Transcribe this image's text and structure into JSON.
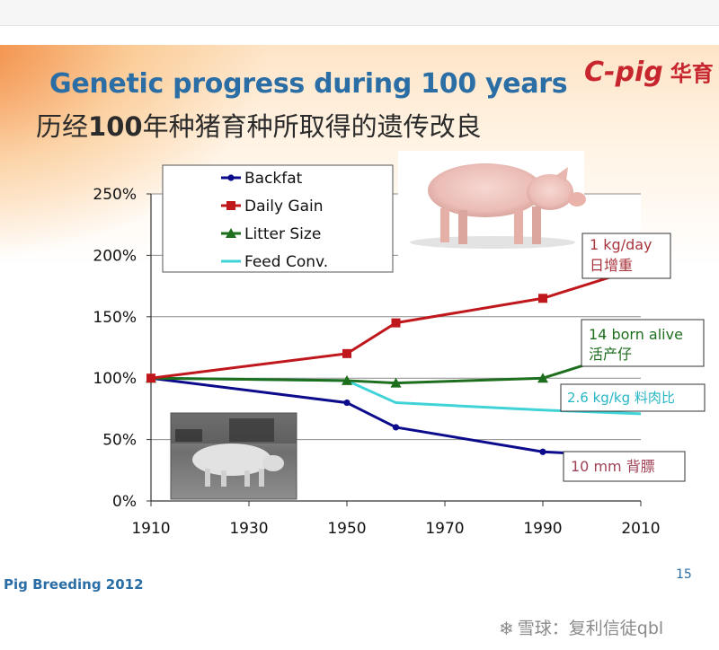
{
  "slide": {
    "title_en": "Genetic progress during 100 years",
    "title_cn_pre": "历经",
    "title_cn_num": "100",
    "title_cn_post": "年种猪育种所取得的遗传改良",
    "logo_en": "C-pig",
    "logo_cn": "华育",
    "footer": "Pig Breeding 2012",
    "page_number": "15"
  },
  "watermark": {
    "icon": "snowball-icon",
    "text": "雪球：复利信徒qbl"
  },
  "chart_data": {
    "type": "line",
    "x": [
      1910,
      1950,
      1960,
      1990,
      2010
    ],
    "xticks": [
      "1910",
      "1930",
      "1950",
      "1970",
      "1990",
      "2010"
    ],
    "xlim": [
      1910,
      2010
    ],
    "ylim": [
      0,
      250
    ],
    "yticks": [
      "0%",
      "50%",
      "100%",
      "150%",
      "200%",
      "250%"
    ],
    "grid": "horizontal",
    "legend_position": "top-left",
    "series": [
      {
        "name": "Backfat",
        "color": "#0b0b8c",
        "marker": "circle",
        "values": [
          100,
          80,
          60,
          40,
          36
        ]
      },
      {
        "name": "Daily Gain",
        "color": "#c0171c",
        "marker": "square",
        "values": [
          100,
          120,
          145,
          165,
          190
        ]
      },
      {
        "name": "Litter Size",
        "color": "#1d6e1d",
        "marker": "triangle",
        "values": [
          100,
          98,
          96,
          100,
          125
        ]
      },
      {
        "name": "Feed Conv.",
        "color": "#3fd3d8",
        "marker": "none",
        "values": [
          100,
          98,
          80,
          74,
          71
        ]
      }
    ],
    "annotations": [
      {
        "line1": "1 kg/day",
        "line2": "日增重",
        "color": "#a8343c"
      },
      {
        "line1": "14 born alive",
        "line2": "活产仔",
        "color": "#1d6e1d"
      },
      {
        "line1": "2.6 kg/kg  料肉比",
        "line2": "",
        "color": "#27b7c4"
      },
      {
        "line1": "10 mm  背膘",
        "line2": "",
        "color": "#a04055"
      }
    ]
  }
}
